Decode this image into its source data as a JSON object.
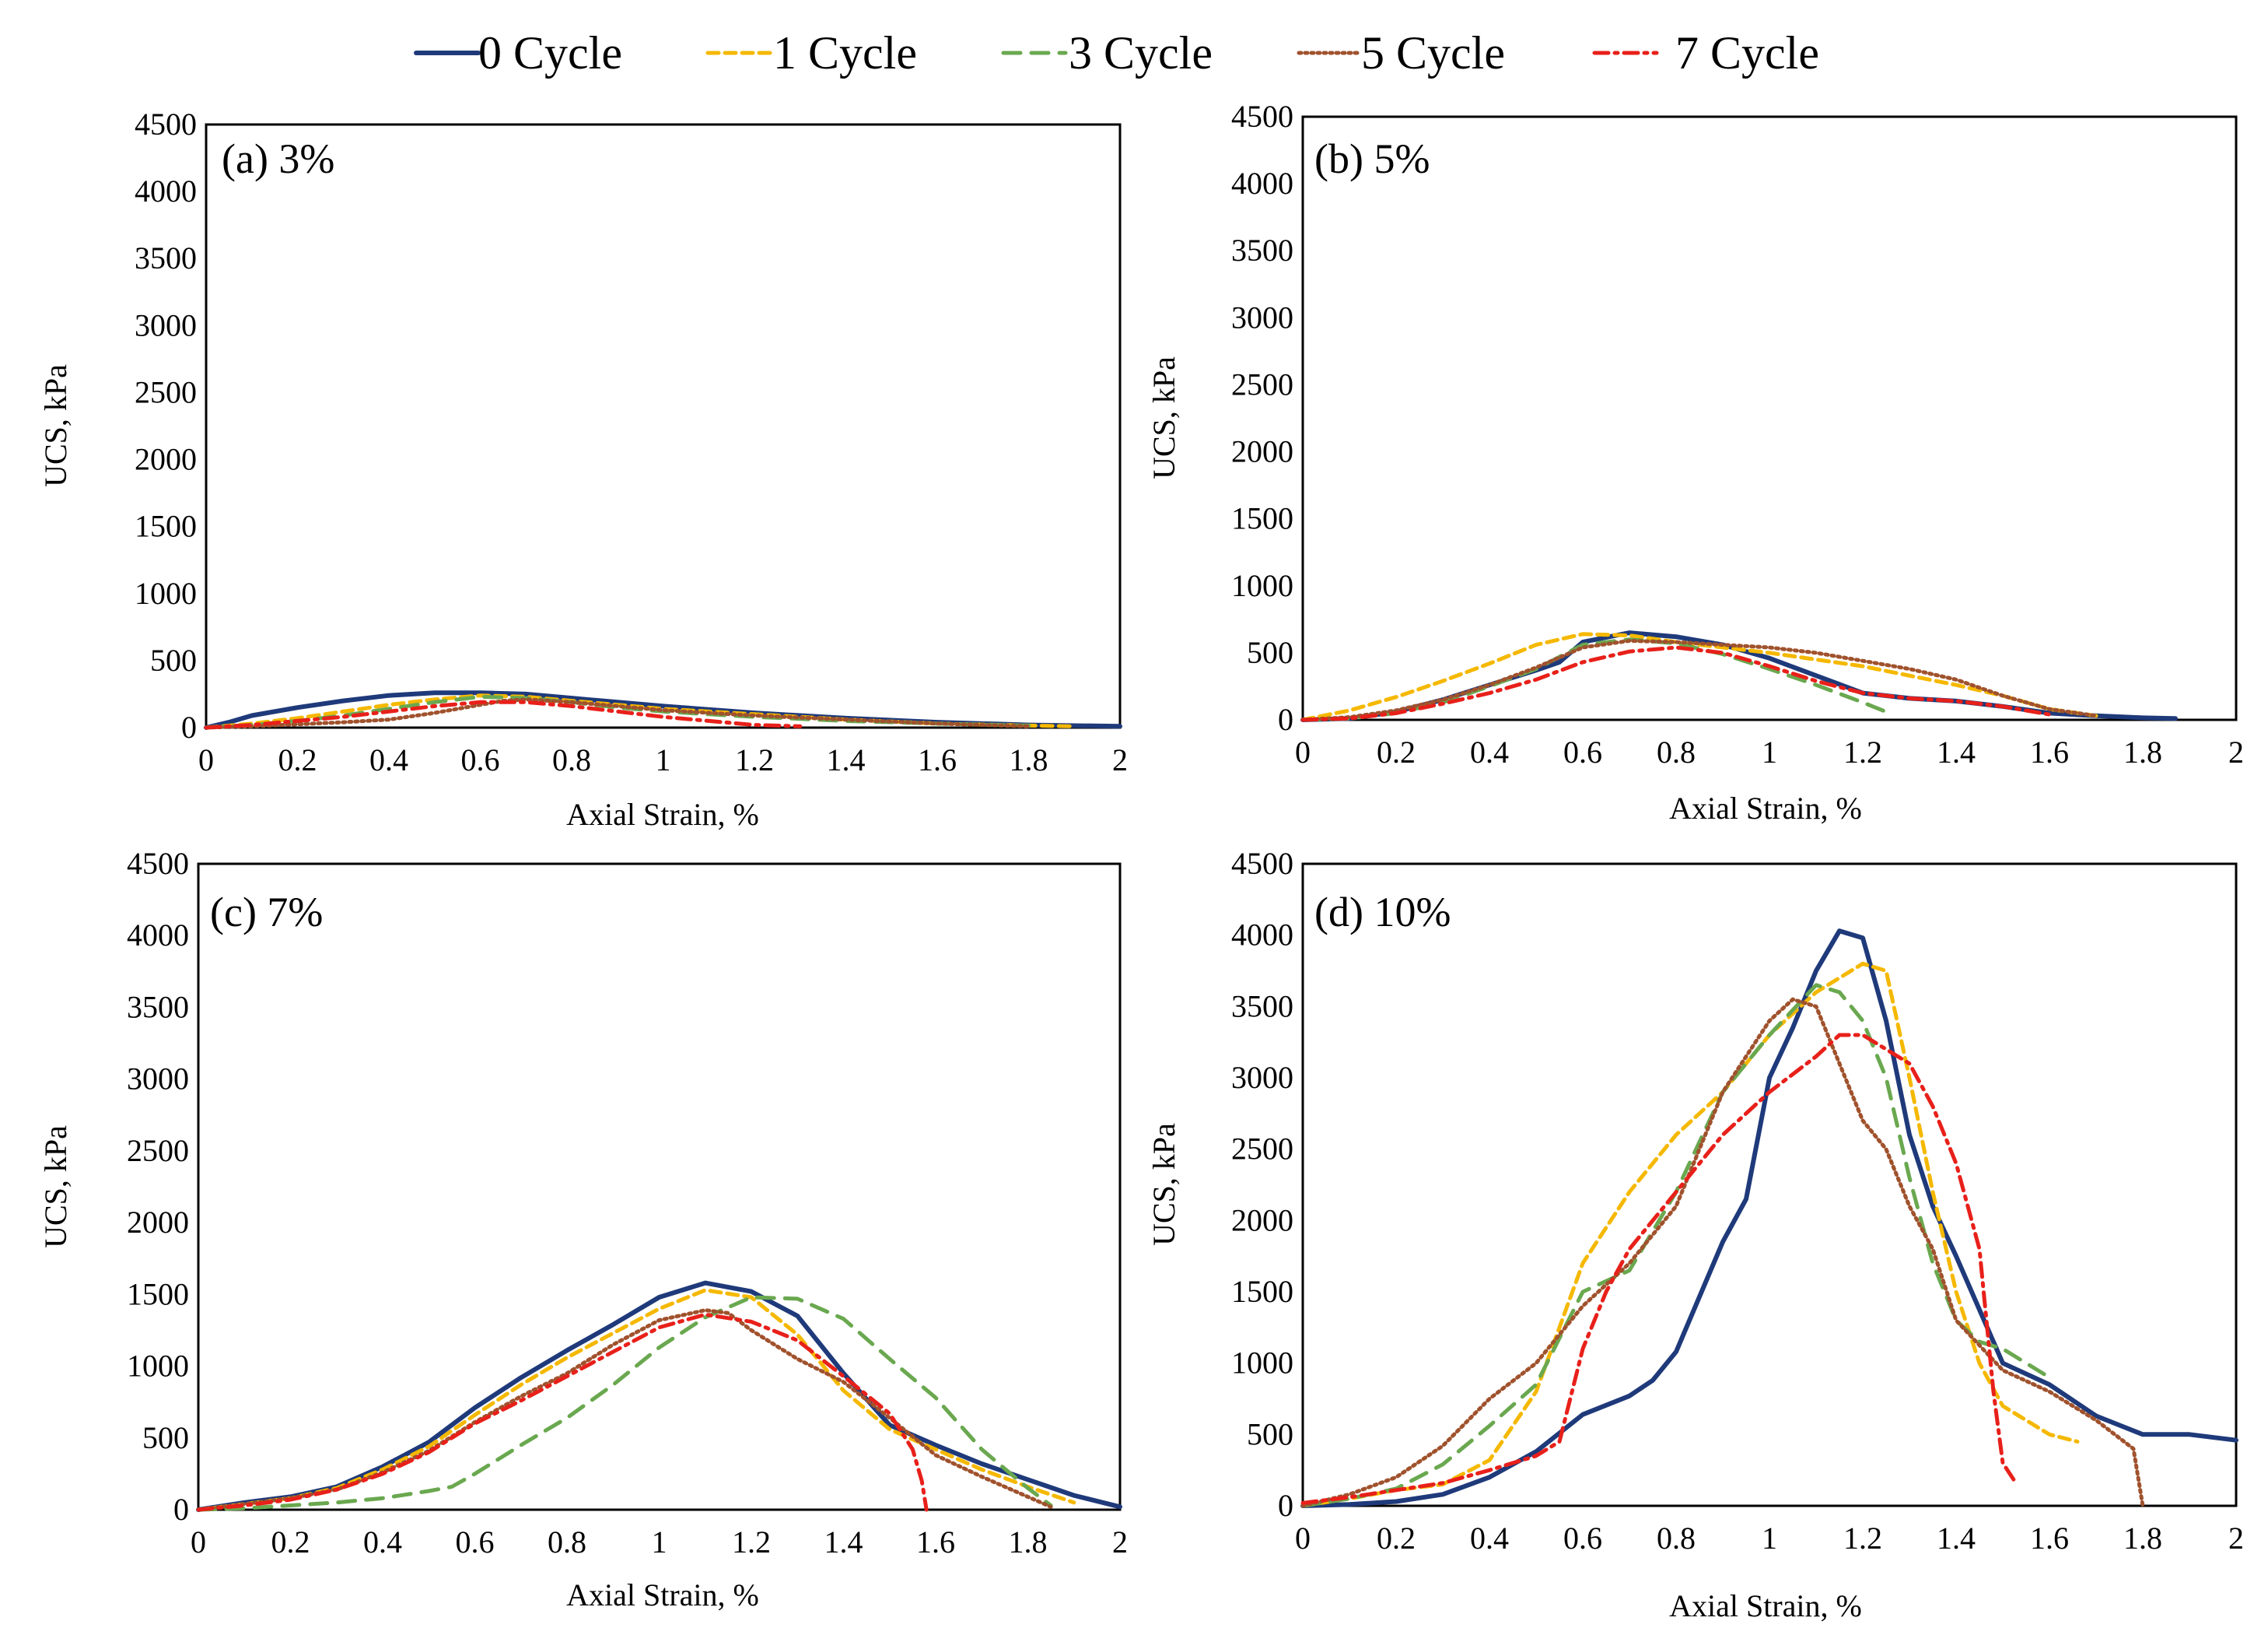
{
  "series_styles": [
    {
      "name": "0 Cycle",
      "color": "#1f3a7a",
      "dash": "solid"
    },
    {
      "name": "1 Cycle",
      "color": "#f5b800",
      "dash": "dash"
    },
    {
      "name": "3 Cycle",
      "color": "#6aa84f",
      "dash": "longdash"
    },
    {
      "name": "5 Cycle",
      "color": "#a0522d",
      "dash": "dot"
    },
    {
      "name": "7 Cycle",
      "color": "#e8201a",
      "dash": "dashdot"
    }
  ],
  "chart_data": [
    {
      "type": "line",
      "title": "(a) 3%",
      "xlabel": "Axial Strain, %",
      "ylabel": "UCS, kPa",
      "xlim": [
        0,
        2
      ],
      "ylim": [
        0,
        4500
      ],
      "xticks": [
        "0",
        "0.2",
        "0.4",
        "0.6",
        "0.8",
        "1",
        "1.2",
        "1.4",
        "1.6",
        "1.8",
        "2"
      ],
      "yticks": [
        "0",
        "500",
        "1000",
        "1500",
        "2000",
        "2500",
        "3000",
        "3500",
        "4000",
        "4500"
      ],
      "series": [
        {
          "name": "0 Cycle",
          "x": [
            0,
            0.05,
            0.1,
            0.2,
            0.3,
            0.4,
            0.5,
            0.6,
            0.7,
            0.8,
            0.9,
            1.0,
            1.2,
            1.4,
            1.6,
            1.8,
            2.0
          ],
          "y": [
            0,
            40,
            90,
            150,
            200,
            240,
            260,
            260,
            250,
            220,
            190,
            160,
            110,
            70,
            40,
            20,
            10
          ]
        },
        {
          "name": "1 Cycle",
          "x": [
            0,
            0.1,
            0.2,
            0.3,
            0.4,
            0.5,
            0.6,
            0.7,
            0.8,
            0.9,
            1.0,
            1.2,
            1.4,
            1.6,
            1.8,
            1.9
          ],
          "y": [
            0,
            30,
            70,
            120,
            170,
            210,
            240,
            230,
            200,
            170,
            140,
            100,
            60,
            30,
            15,
            10
          ]
        },
        {
          "name": "3 Cycle",
          "x": [
            0,
            0.1,
            0.2,
            0.3,
            0.4,
            0.5,
            0.6,
            0.7,
            0.8,
            0.9,
            1.0,
            1.2,
            1.4,
            1.6,
            1.8
          ],
          "y": [
            0,
            20,
            50,
            90,
            140,
            190,
            230,
            220,
            190,
            150,
            120,
            80,
            50,
            30,
            15
          ]
        },
        {
          "name": "5 Cycle",
          "x": [
            0,
            0.1,
            0.2,
            0.3,
            0.4,
            0.5,
            0.6,
            0.65,
            0.7,
            0.8,
            0.9,
            1.0,
            1.2,
            1.4,
            1.6,
            1.8
          ],
          "y": [
            0,
            10,
            25,
            40,
            60,
            110,
            170,
            200,
            210,
            190,
            160,
            130,
            90,
            60,
            30,
            10
          ]
        },
        {
          "name": "7 Cycle",
          "x": [
            0,
            0.1,
            0.2,
            0.3,
            0.4,
            0.5,
            0.6,
            0.7,
            0.8,
            0.9,
            1.0,
            1.1,
            1.2,
            1.3
          ],
          "y": [
            0,
            20,
            50,
            80,
            120,
            160,
            190,
            190,
            160,
            120,
            80,
            50,
            20,
            10
          ]
        }
      ]
    },
    {
      "type": "line",
      "title": "(b) 5%",
      "xlabel": "Axial Strain, %",
      "ylabel": "UCS, kPa",
      "xlim": [
        0,
        2
      ],
      "ylim": [
        0,
        4500
      ],
      "xticks": [
        "0",
        "0.2",
        "0.4",
        "0.6",
        "0.8",
        "1",
        "1.2",
        "1.4",
        "1.6",
        "1.8",
        "2"
      ],
      "yticks": [
        "0",
        "500",
        "1000",
        "1500",
        "2000",
        "2500",
        "3000",
        "3500",
        "4000",
        "4500"
      ],
      "series": [
        {
          "name": "0 Cycle",
          "x": [
            0,
            0.1,
            0.2,
            0.3,
            0.4,
            0.5,
            0.55,
            0.6,
            0.7,
            0.8,
            0.9,
            1.0,
            1.1,
            1.2,
            1.3,
            1.4,
            1.5,
            1.6,
            1.7,
            1.8,
            1.87
          ],
          "y": [
            0,
            10,
            60,
            150,
            260,
            370,
            430,
            580,
            650,
            620,
            560,
            460,
            330,
            200,
            160,
            140,
            100,
            50,
            30,
            15,
            10
          ]
        },
        {
          "name": "1 Cycle",
          "x": [
            0,
            0.1,
            0.2,
            0.3,
            0.4,
            0.5,
            0.6,
            0.7,
            0.8,
            0.9,
            1.0,
            1.1,
            1.2,
            1.3,
            1.4,
            1.5,
            1.6,
            1.7
          ],
          "y": [
            0,
            70,
            170,
            290,
            420,
            560,
            640,
            630,
            580,
            540,
            500,
            450,
            400,
            330,
            260,
            180,
            80,
            30
          ]
        },
        {
          "name": "3 Cycle",
          "x": [
            0,
            0.1,
            0.2,
            0.3,
            0.4,
            0.5,
            0.6,
            0.7,
            0.8,
            0.9,
            1.0,
            1.1,
            1.2,
            1.25
          ],
          "y": [
            0,
            10,
            50,
            130,
            250,
            380,
            560,
            600,
            570,
            490,
            380,
            260,
            130,
            60
          ]
        },
        {
          "name": "5 Cycle",
          "x": [
            0,
            0.1,
            0.2,
            0.3,
            0.4,
            0.5,
            0.6,
            0.7,
            0.8,
            0.9,
            1.0,
            1.1,
            1.2,
            1.3,
            1.4,
            1.5,
            1.6,
            1.7
          ],
          "y": [
            0,
            20,
            70,
            150,
            260,
            390,
            540,
            590,
            580,
            560,
            540,
            500,
            440,
            380,
            300,
            180,
            80,
            30
          ]
        },
        {
          "name": "7 Cycle",
          "x": [
            0,
            0.1,
            0.2,
            0.3,
            0.4,
            0.5,
            0.6,
            0.7,
            0.8,
            0.9,
            1.0,
            1.1,
            1.2,
            1.3,
            1.4,
            1.5,
            1.6
          ],
          "y": [
            0,
            10,
            50,
            120,
            200,
            300,
            430,
            510,
            540,
            500,
            400,
            290,
            200,
            160,
            140,
            100,
            40
          ]
        }
      ]
    },
    {
      "type": "line",
      "title": "(c) 7%",
      "xlabel": "Axial Strain, %",
      "ylabel": "UCS, kPa",
      "xlim": [
        0,
        2
      ],
      "ylim": [
        0,
        4500
      ],
      "xticks": [
        "0",
        "0.2",
        "0.4",
        "0.6",
        "0.8",
        "1",
        "1.2",
        "1.4",
        "1.6",
        "1.8",
        "2"
      ],
      "yticks": [
        "0",
        "500",
        "1000",
        "1500",
        "2000",
        "2500",
        "3000",
        "3500",
        "4000",
        "4500"
      ],
      "series": [
        {
          "name": "0 Cycle",
          "x": [
            0,
            0.1,
            0.2,
            0.3,
            0.4,
            0.5,
            0.6,
            0.7,
            0.8,
            0.9,
            1.0,
            1.1,
            1.2,
            1.3,
            1.35,
            1.4,
            1.5,
            1.6,
            1.7,
            1.8,
            1.9,
            2.0
          ],
          "y": [
            0,
            50,
            90,
            160,
            300,
            470,
            710,
            920,
            1110,
            1290,
            1480,
            1580,
            1520,
            1350,
            1150,
            950,
            590,
            450,
            320,
            210,
            100,
            20
          ]
        },
        {
          "name": "1 Cycle",
          "x": [
            0,
            0.1,
            0.2,
            0.3,
            0.4,
            0.5,
            0.6,
            0.7,
            0.8,
            0.9,
            1.0,
            1.1,
            1.2,
            1.3,
            1.4,
            1.5,
            1.6,
            1.7,
            1.8,
            1.9
          ],
          "y": [
            0,
            40,
            80,
            150,
            280,
            440,
            660,
            870,
            1060,
            1230,
            1400,
            1530,
            1480,
            1220,
            830,
            560,
            420,
            280,
            160,
            50
          ]
        },
        {
          "name": "3 Cycle",
          "x": [
            0,
            0.1,
            0.2,
            0.3,
            0.4,
            0.5,
            0.55,
            0.6,
            0.7,
            0.8,
            0.9,
            1.0,
            1.1,
            1.2,
            1.3,
            1.4,
            1.5,
            1.6,
            1.7,
            1.8,
            1.85
          ],
          "y": [
            0,
            10,
            30,
            50,
            80,
            130,
            160,
            250,
            450,
            640,
            870,
            1130,
            1340,
            1480,
            1470,
            1330,
            1050,
            780,
            420,
            150,
            30
          ]
        },
        {
          "name": "5 Cycle",
          "x": [
            0,
            0.1,
            0.2,
            0.3,
            0.4,
            0.5,
            0.6,
            0.7,
            0.8,
            0.9,
            1.0,
            1.1,
            1.15,
            1.2,
            1.3,
            1.4,
            1.5,
            1.6,
            1.7,
            1.8,
            1.85
          ],
          "y": [
            0,
            40,
            80,
            140,
            260,
            410,
            610,
            790,
            950,
            1150,
            1320,
            1390,
            1370,
            1250,
            1050,
            890,
            640,
            380,
            230,
            90,
            20
          ]
        },
        {
          "name": "7 Cycle",
          "x": [
            0,
            0.1,
            0.2,
            0.3,
            0.4,
            0.5,
            0.6,
            0.7,
            0.8,
            0.9,
            1.0,
            1.1,
            1.2,
            1.3,
            1.4,
            1.5,
            1.55,
            1.57,
            1.58
          ],
          "y": [
            0,
            30,
            70,
            140,
            250,
            400,
            600,
            760,
            930,
            1100,
            1270,
            1360,
            1310,
            1180,
            930,
            670,
            420,
            200,
            0
          ]
        }
      ]
    },
    {
      "type": "line",
      "title": "(d) 10%",
      "xlabel": "Axial Strain, %",
      "ylabel": "UCS, kPa",
      "xlim": [
        0,
        2
      ],
      "ylim": [
        0,
        4500
      ],
      "xticks": [
        "0",
        "0.2",
        "0.4",
        "0.6",
        "0.8",
        "1",
        "1.2",
        "1.4",
        "1.6",
        "1.8",
        "2"
      ],
      "yticks": [
        "0",
        "500",
        "1000",
        "1500",
        "2000",
        "2500",
        "3000",
        "3500",
        "4000",
        "4500"
      ],
      "series": [
        {
          "name": "0 Cycle",
          "x": [
            0,
            0.1,
            0.2,
            0.3,
            0.4,
            0.5,
            0.6,
            0.7,
            0.75,
            0.8,
            0.9,
            0.95,
            1.0,
            1.05,
            1.1,
            1.15,
            1.2,
            1.25,
            1.3,
            1.35,
            1.4,
            1.5,
            1.6,
            1.7,
            1.8,
            1.9,
            2.0
          ],
          "y": [
            0,
            10,
            30,
            80,
            200,
            380,
            640,
            770,
            880,
            1080,
            1850,
            2150,
            3000,
            3350,
            3750,
            4030,
            3980,
            3400,
            2600,
            2100,
            1750,
            1000,
            850,
            630,
            500,
            500,
            460
          ]
        },
        {
          "name": "1 Cycle",
          "x": [
            0,
            0.1,
            0.2,
            0.3,
            0.4,
            0.5,
            0.6,
            0.7,
            0.8,
            0.9,
            1.0,
            1.1,
            1.2,
            1.25,
            1.3,
            1.35,
            1.4,
            1.45,
            1.5,
            1.6,
            1.66
          ],
          "y": [
            0,
            50,
            110,
            150,
            320,
            800,
            1700,
            2200,
            2600,
            2900,
            3300,
            3600,
            3800,
            3750,
            3000,
            2200,
            1500,
            1000,
            700,
            500,
            450
          ]
        },
        {
          "name": "3 Cycle",
          "x": [
            0,
            0.1,
            0.2,
            0.3,
            0.4,
            0.5,
            0.6,
            0.7,
            0.8,
            0.9,
            1.0,
            1.1,
            1.15,
            1.2,
            1.25,
            1.3,
            1.35,
            1.4,
            1.45,
            1.5,
            1.6
          ],
          "y": [
            0,
            50,
            120,
            290,
            560,
            850,
            1500,
            1650,
            2200,
            2900,
            3300,
            3650,
            3600,
            3400,
            3000,
            2300,
            1700,
            1300,
            1150,
            1100,
            900
          ]
        },
        {
          "name": "5 Cycle",
          "x": [
            0,
            0.1,
            0.2,
            0.3,
            0.4,
            0.5,
            0.6,
            0.7,
            0.8,
            0.9,
            1.0,
            1.05,
            1.1,
            1.15,
            1.2,
            1.25,
            1.3,
            1.35,
            1.4,
            1.5,
            1.6,
            1.7,
            1.78,
            1.8
          ],
          "y": [
            0,
            80,
            200,
            420,
            750,
            1000,
            1400,
            1700,
            2100,
            2900,
            3400,
            3550,
            3500,
            3100,
            2700,
            2500,
            2100,
            1800,
            1300,
            950,
            800,
            600,
            400,
            0
          ]
        },
        {
          "name": "7 Cycle",
          "x": [
            0,
            0.1,
            0.2,
            0.3,
            0.4,
            0.5,
            0.55,
            0.6,
            0.65,
            0.7,
            0.8,
            0.9,
            1.0,
            1.1,
            1.15,
            1.2,
            1.3,
            1.35,
            1.4,
            1.45,
            1.48,
            1.5,
            1.53
          ],
          "y": [
            20,
            60,
            110,
            160,
            250,
            350,
            450,
            1100,
            1500,
            1800,
            2200,
            2600,
            2900,
            3150,
            3300,
            3300,
            3100,
            2800,
            2400,
            1800,
            800,
            300,
            150
          ]
        }
      ]
    }
  ]
}
